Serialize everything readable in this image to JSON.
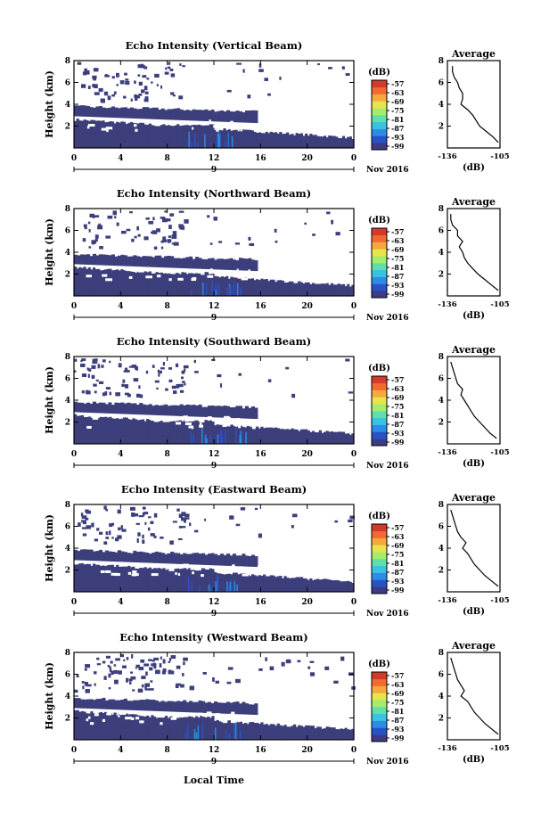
{
  "figure": {
    "xlabel": "Local Time",
    "date_label": "Nov 2016",
    "day_label": "9",
    "ylabel": "Height (km)",
    "colorbar_label": "(dB)",
    "colorbar_ticks": [
      "-57",
      "-63",
      "-69",
      "-75",
      "-81",
      "-87",
      "-93",
      "-99"
    ],
    "colorbar_colors": [
      "#3a3c86",
      "#2a52c8",
      "#2a8ee8",
      "#36c4e0",
      "#5ee0a8",
      "#a6ec6a",
      "#e8e44c",
      "#f6a83a",
      "#f26a32",
      "#d23a2c"
    ],
    "background_color": "#3c3f7c",
    "avg_title": "Average",
    "avg_xlabel": "(dB)"
  },
  "chart_data": [
    {
      "type": "heatmap",
      "title": "Echo Intensity (Vertical Beam)",
      "xlabel": "Local Time",
      "ylabel": "Height (km)",
      "x_ticks": [
        "0",
        "4",
        "8",
        "12",
        "16",
        "20",
        "0"
      ],
      "xlim": [
        0,
        24
      ],
      "ylim": [
        0,
        8
      ],
      "y_ticks": [
        "2",
        "4",
        "6",
        "8"
      ],
      "colorbar": {
        "label": "(dB)",
        "range": [
          -99,
          -57
        ]
      },
      "profile_height_km": [
        0.5,
        1.0,
        1.5,
        2.0,
        2.5,
        3.0,
        3.5,
        4.0,
        4.5,
        5.0,
        5.5,
        6.0,
        6.5,
        7.0,
        7.5
      ],
      "average_profile_db": [
        -106,
        -109,
        -113,
        -117,
        -119,
        -121,
        -124,
        -128,
        -127,
        -127,
        -129,
        -130,
        -132,
        -133,
        -133
      ],
      "average_axes": {
        "title": "Average",
        "xlabel": "(dB)",
        "xlim": [
          -136,
          -105
        ],
        "x_ticks": [
          "-136",
          "-105"
        ],
        "ylim": [
          0,
          8
        ],
        "y_ticks": [
          "2",
          "4",
          "6",
          "8"
        ]
      }
    },
    {
      "type": "heatmap",
      "title": "Echo Intensity (Northward Beam)",
      "xlabel": "Local Time",
      "ylabel": "Height (km)",
      "x_ticks": [
        "0",
        "4",
        "8",
        "12",
        "16",
        "20",
        "0"
      ],
      "xlim": [
        0,
        24
      ],
      "ylim": [
        0,
        8
      ],
      "y_ticks": [
        "2",
        "4",
        "6",
        "8"
      ],
      "colorbar": {
        "label": "(dB)",
        "range": [
          -99,
          -57
        ]
      },
      "profile_height_km": [
        0.5,
        1.0,
        1.5,
        2.0,
        2.5,
        3.0,
        3.5,
        4.0,
        4.5,
        5.0,
        5.5,
        6.0,
        6.5,
        7.0,
        7.5
      ],
      "average_profile_db": [
        -106,
        -110,
        -114,
        -118,
        -121,
        -124,
        -126,
        -127,
        -129,
        -127,
        -130,
        -130,
        -133,
        -134,
        -134
      ],
      "average_axes": {
        "title": "Average",
        "xlabel": "(dB)",
        "xlim": [
          -136,
          -105
        ],
        "x_ticks": [
          "-136",
          "-105"
        ],
        "ylim": [
          0,
          8
        ],
        "y_ticks": [
          "2",
          "4",
          "6",
          "8"
        ]
      }
    },
    {
      "type": "heatmap",
      "title": "Echo Intensity (Southward Beam)",
      "xlabel": "Local Time",
      "ylabel": "Height (km)",
      "x_ticks": [
        "0",
        "4",
        "8",
        "12",
        "16",
        "20",
        "0"
      ],
      "xlim": [
        0,
        24
      ],
      "ylim": [
        0,
        8
      ],
      "y_ticks": [
        "2",
        "4",
        "6",
        "8"
      ],
      "colorbar": {
        "label": "(dB)",
        "range": [
          -99,
          -57
        ]
      },
      "profile_height_km": [
        0.5,
        1.0,
        1.5,
        2.0,
        2.5,
        3.0,
        3.5,
        4.0,
        4.5,
        5.0,
        5.5,
        6.0,
        6.5,
        7.0,
        7.5
      ],
      "average_profile_db": [
        -107,
        -111,
        -114,
        -117,
        -120,
        -122,
        -124,
        -126,
        -128,
        -127,
        -130,
        -131,
        -132,
        -133,
        -134
      ],
      "average_axes": {
        "title": "Average",
        "xlabel": "(dB)",
        "xlim": [
          -136,
          -105
        ],
        "x_ticks": [
          "-136",
          "-105"
        ],
        "ylim": [
          0,
          8
        ],
        "y_ticks": [
          "2",
          "4",
          "6",
          "8"
        ]
      }
    },
    {
      "type": "heatmap",
      "title": "Echo Intensity (Eastward Beam)",
      "xlabel": "Local Time",
      "ylabel": "Height (km)",
      "x_ticks": [
        "0",
        "4",
        "8",
        "12",
        "16",
        "20",
        "0"
      ],
      "xlim": [
        0,
        24
      ],
      "ylim": [
        0,
        8
      ],
      "y_ticks": [
        "2",
        "4",
        "6",
        "8"
      ],
      "colorbar": {
        "label": "(dB)",
        "range": [
          -99,
          -57
        ]
      },
      "profile_height_km": [
        0.5,
        1.0,
        1.5,
        2.0,
        2.5,
        3.0,
        3.5,
        4.0,
        4.5,
        5.0,
        5.5,
        6.0,
        6.5,
        7.0,
        7.5
      ],
      "average_profile_db": [
        -106,
        -110,
        -114,
        -117,
        -120,
        -122,
        -124,
        -127,
        -125,
        -128,
        -130,
        -131,
        -132,
        -133,
        -134
      ],
      "average_axes": {
        "title": "Average",
        "xlabel": "(dB)",
        "xlim": [
          -136,
          -105
        ],
        "x_ticks": [
          "-136",
          "-105"
        ],
        "ylim": [
          0,
          8
        ],
        "y_ticks": [
          "2",
          "4",
          "6",
          "8"
        ]
      }
    },
    {
      "type": "heatmap",
      "title": "Echo Intensity (Westward Beam)",
      "xlabel": "Local Time",
      "ylabel": "Height (km)",
      "x_ticks": [
        "0",
        "4",
        "8",
        "12",
        "16",
        "20",
        "0"
      ],
      "xlim": [
        0,
        24
      ],
      "ylim": [
        0,
        8
      ],
      "y_ticks": [
        "2",
        "4",
        "6",
        "8"
      ],
      "colorbar": {
        "label": "(dB)",
        "range": [
          -99,
          -57
        ]
      },
      "profile_height_km": [
        0.5,
        1.0,
        1.5,
        2.0,
        2.5,
        3.0,
        3.5,
        4.0,
        4.5,
        5.0,
        5.5,
        6.0,
        6.5,
        7.0,
        7.5
      ],
      "average_profile_db": [
        -106,
        -110,
        -114,
        -117,
        -120,
        -122,
        -124,
        -128,
        -126,
        -128,
        -130,
        -131,
        -132,
        -133,
        -134
      ],
      "average_axes": {
        "title": "Average",
        "xlabel": "(dB)",
        "xlim": [
          -136,
          -105
        ],
        "x_ticks": [
          "-136",
          "-105"
        ],
        "ylim": [
          0,
          8
        ],
        "y_ticks": [
          "2",
          "4",
          "6",
          "8"
        ]
      }
    }
  ]
}
